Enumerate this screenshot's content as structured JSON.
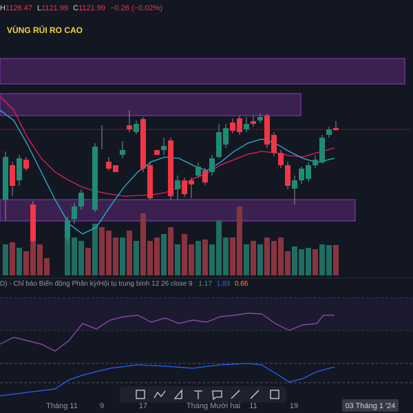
{
  "header": {
    "high_label": "H",
    "high": "1126.47",
    "low_label": "L",
    "low": "1121.99",
    "close_label": "C",
    "close": "1121.99",
    "change": "−0.26 (−0.02%)"
  },
  "annotation": "VÙNG RỦI RO CAO",
  "indicator": {
    "name": "D) - Chỉ báo Biến động Phân kỳ/Hội tụ trung bình 12 26 close 9",
    "v1": "1.17",
    "v2": "1.83",
    "v3": "0.66"
  },
  "x_axis": [
    "Tháng 11",
    "9",
    "17",
    "Tháng Mười hai",
    "11",
    "19"
  ],
  "date_badge": "03 Tháng 1 '24"
}
